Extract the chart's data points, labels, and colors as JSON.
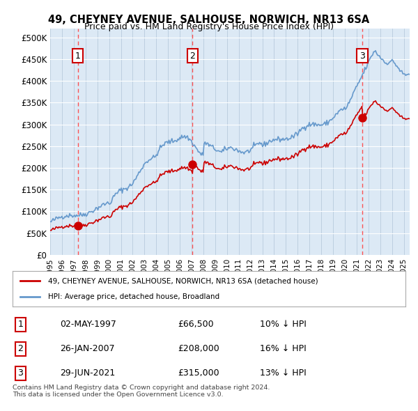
{
  "title": "49, CHEYNEY AVENUE, SALHOUSE, NORWICH, NR13 6SA",
  "subtitle": "Price paid vs. HM Land Registry's House Price Index (HPI)",
  "xlim": [
    1995.0,
    2025.5
  ],
  "ylim": [
    0,
    520000
  ],
  "yticks": [
    0,
    50000,
    100000,
    150000,
    200000,
    250000,
    300000,
    350000,
    400000,
    450000,
    500000
  ],
  "ytick_labels": [
    "£0",
    "£50K",
    "£100K",
    "£150K",
    "£200K",
    "£250K",
    "£300K",
    "£350K",
    "£400K",
    "£450K",
    "£500K"
  ],
  "bg_color": "#dce9f5",
  "plot_bg_color": "#dce9f5",
  "grid_color": "#ffffff",
  "sale_color": "#cc0000",
  "hpi_color": "#6699cc",
  "sale_marker_color": "#cc0000",
  "dashed_line_color": "#ff4444",
  "annotation_box_color": "#cc0000",
  "sales": [
    {
      "date": 1997.34,
      "price": 66500,
      "label": "1"
    },
    {
      "date": 2007.07,
      "price": 208000,
      "label": "2"
    },
    {
      "date": 2021.49,
      "price": 315000,
      "label": "3"
    }
  ],
  "legend_sale_label": "49, CHEYNEY AVENUE, SALHOUSE, NORWICH, NR13 6SA (detached house)",
  "legend_hpi_label": "HPI: Average price, detached house, Broadland",
  "table_entries": [
    {
      "num": "1",
      "date": "02-MAY-1997",
      "price": "£66,500",
      "pct": "10% ↓ HPI"
    },
    {
      "num": "2",
      "date": "26-JAN-2007",
      "price": "£208,000",
      "pct": "16% ↓ HPI"
    },
    {
      "num": "3",
      "date": "29-JUN-2021",
      "price": "£315,000",
      "pct": "13% ↓ HPI"
    }
  ],
  "footer": "Contains HM Land Registry data © Crown copyright and database right 2024.\nThis data is licensed under the Open Government Licence v3.0."
}
